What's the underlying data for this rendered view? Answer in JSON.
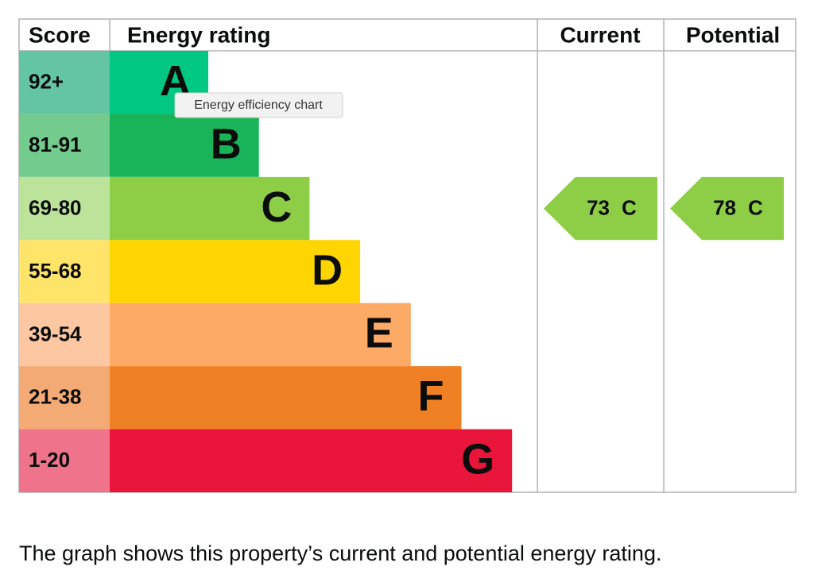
{
  "header": {
    "score": "Score",
    "energy_rating": "Energy rating",
    "current": "Current",
    "potential": "Potential"
  },
  "bands": [
    {
      "score": "92+",
      "letter": "A",
      "color": "#00c781",
      "score_color": "#64c5a4"
    },
    {
      "score": "81-91",
      "letter": "B",
      "color": "#19b459",
      "score_color": "#73cb8e"
    },
    {
      "score": "69-80",
      "letter": "C",
      "color": "#8dce46",
      "score_color": "#bce39a"
    },
    {
      "score": "55-68",
      "letter": "D",
      "color": "#ffd500",
      "score_color": "#ffe46a"
    },
    {
      "score": "39-54",
      "letter": "E",
      "color": "#fcaa65",
      "score_color": "#fdc8a1"
    },
    {
      "score": "21-38",
      "letter": "F",
      "color": "#ef8023",
      "score_color": "#f3aa75"
    },
    {
      "score": "1-20",
      "letter": "G",
      "color": "#e9153b",
      "score_color": "#ef738a"
    }
  ],
  "current": {
    "label": "73",
    "letter": "C"
  },
  "potential": {
    "label": "78",
    "letter": "C"
  },
  "tooltip": "Energy efficiency chart",
  "caption": "The graph shows this property’s current and potential energy rating."
}
